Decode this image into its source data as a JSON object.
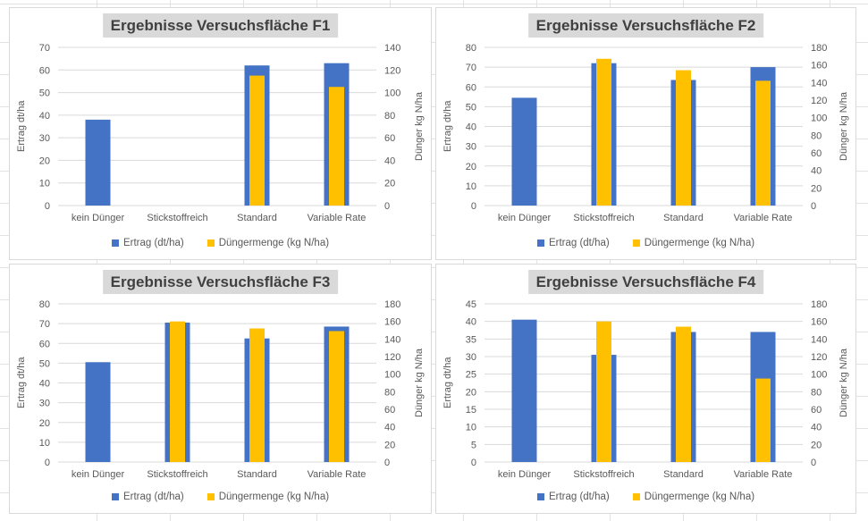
{
  "app": {
    "context": "spreadsheet-charts"
  },
  "colors": {
    "ertrag": "#4472C4",
    "duenger": "#FFC000",
    "title_bg": "#D9D9D9",
    "title_text": "#404040",
    "axis_text": "#595959",
    "gridline": "#D9D9D9",
    "panel_border": "#D9D9D9",
    "sheet_gridline": "#E2E2E2"
  },
  "chart_data": [
    {
      "type": "bar",
      "title": "Ergebnisse Versuchsfläche F1",
      "categories": [
        "kein Dünger",
        "Stickstoffreich",
        "Standard",
        "Variable Rate"
      ],
      "left_axis": {
        "label": "Ertrag dt/ha",
        "min": 0,
        "max": 70,
        "step": 10
      },
      "right_axis": {
        "label": "Dünger kg N/ha",
        "min": 0,
        "max": 140,
        "step": 20
      },
      "grid": true,
      "legend_position": "bottom",
      "series": [
        {
          "name": "Ertrag (dt/ha)",
          "axis": "left",
          "color": "#4472C4",
          "values": [
            38,
            0,
            62,
            63
          ]
        },
        {
          "name": "Düngermenge (kg N/ha)",
          "axis": "right",
          "color": "#FFC000",
          "values": [
            0,
            0,
            115,
            105
          ]
        }
      ]
    },
    {
      "type": "bar",
      "title": "Ergebnisse Versuchsfläche F2",
      "categories": [
        "kein Dünger",
        "Stickstoffreich",
        "Standard",
        "Variable Rate"
      ],
      "left_axis": {
        "label": "Ertrag dt/ha",
        "min": 0,
        "max": 80,
        "step": 10
      },
      "right_axis": {
        "label": "Dünger kg N/ha",
        "min": 0,
        "max": 180,
        "step": 20
      },
      "grid": true,
      "legend_position": "bottom",
      "series": [
        {
          "name": "Ertrag (dt/ha)",
          "axis": "left",
          "color": "#4472C4",
          "values": [
            54.5,
            72,
            63.5,
            70
          ]
        },
        {
          "name": "Düngermenge (kg N/ha)",
          "axis": "right",
          "color": "#FFC000",
          "values": [
            0,
            167,
            154,
            142
          ]
        }
      ]
    },
    {
      "type": "bar",
      "title": "Ergebnisse Versuchsfläche F3",
      "categories": [
        "kein Dünger",
        "Stickstoffreich",
        "Standard",
        "Variable Rate"
      ],
      "left_axis": {
        "label": "Ertrag dt/ha",
        "min": 0,
        "max": 80,
        "step": 10
      },
      "right_axis": {
        "label": "Dünger kg N/ha",
        "min": 0,
        "max": 180,
        "step": 20
      },
      "grid": true,
      "legend_position": "bottom",
      "series": [
        {
          "name": "Ertrag (dt/ha)",
          "axis": "left",
          "color": "#4472C4",
          "values": [
            50.5,
            70.5,
            62.5,
            68.5
          ]
        },
        {
          "name": "Düngermenge (kg N/ha)",
          "axis": "right",
          "color": "#FFC000",
          "values": [
            0,
            160,
            152,
            149
          ]
        }
      ]
    },
    {
      "type": "bar",
      "title": "Ergebnisse Versuchsfläche F4",
      "categories": [
        "kein Dünger",
        "Stickstoffreich",
        "Standard",
        "Variable Rate"
      ],
      "left_axis": {
        "label": "Ertrag dt/ha",
        "min": 0,
        "max": 45,
        "step": 5
      },
      "right_axis": {
        "label": "Dünger kg N/ha",
        "min": 0,
        "max": 180,
        "step": 20
      },
      "grid": true,
      "legend_position": "bottom",
      "series": [
        {
          "name": "Ertrag (dt/ha)",
          "axis": "left",
          "color": "#4472C4",
          "values": [
            40.5,
            30.5,
            37,
            37
          ]
        },
        {
          "name": "Düngermenge (kg N/ha)",
          "axis": "right",
          "color": "#FFC000",
          "values": [
            0,
            160,
            154,
            95
          ]
        }
      ]
    }
  ]
}
